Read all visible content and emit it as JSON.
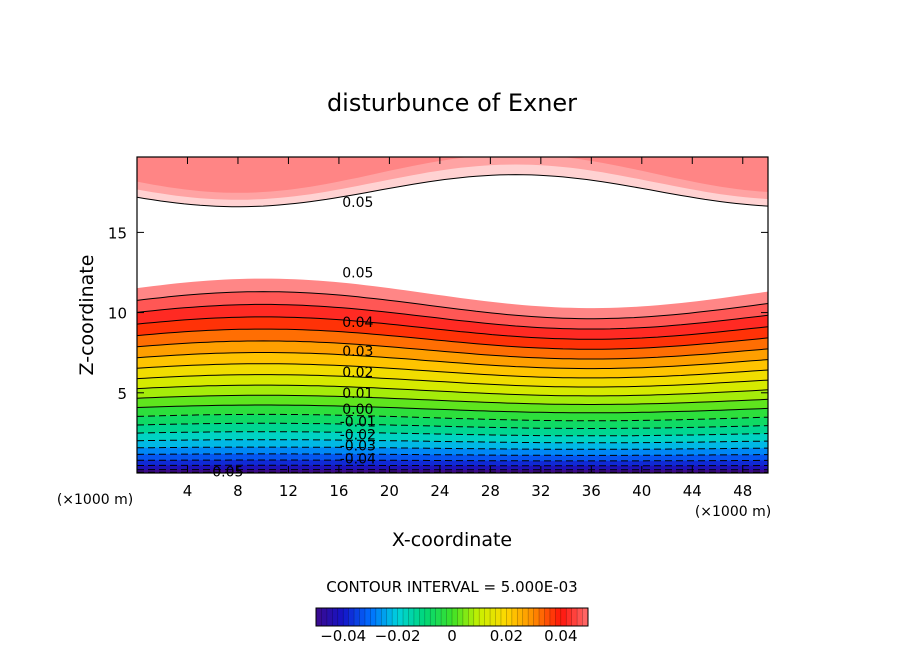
{
  "chart_data": {
    "type": "contour",
    "title": "disturbunce of Exner",
    "xlabel": "X-coordinate",
    "ylabel": "Z-coordinate",
    "x_unit": "(×1000 m)",
    "xlim": [
      0,
      50
    ],
    "ylim": [
      0,
      19.7
    ],
    "x_ticks": [
      4,
      8,
      12,
      16,
      20,
      24,
      28,
      32,
      36,
      40,
      44,
      48
    ],
    "y_ticks": [
      5,
      10,
      15
    ],
    "contour_interval_text": "CONTOUR INTERVAL = 5.000E-03",
    "contour_levels": [
      -0.05,
      -0.045,
      -0.04,
      -0.035,
      -0.03,
      -0.025,
      -0.02,
      -0.015,
      -0.01,
      -0.005,
      0.0,
      0.005,
      0.01,
      0.015,
      0.02,
      0.025,
      0.03,
      0.035,
      0.04,
      0.045,
      0.05
    ],
    "upper_band_levels": [
      0.05,
      0.055,
      0.06
    ],
    "contour_labels": [
      {
        "text": "0.05",
        "x": 17.5,
        "z": 16.9
      },
      {
        "text": "0.05",
        "x": 17.5,
        "z": 12.5
      },
      {
        "text": "0.04",
        "x": 17.5,
        "z": 9.4
      },
      {
        "text": "0.03",
        "x": 17.5,
        "z": 7.6
      },
      {
        "text": "0.02",
        "x": 17.5,
        "z": 6.3
      },
      {
        "text": "0.01",
        "x": 17.5,
        "z": 5.0
      },
      {
        "text": "0.00",
        "x": 17.5,
        "z": 4.0
      },
      {
        "text": "-0.01",
        "x": 17.5,
        "z": 3.2
      },
      {
        "text": "-0.02",
        "x": 17.5,
        "z": 2.4
      },
      {
        "text": "-0.03",
        "x": 17.5,
        "z": 1.7
      },
      {
        "text": "-0.04",
        "x": 17.5,
        "z": 0.9
      },
      {
        "text": "-0.05",
        "x": 7.0,
        "z": 0.1
      }
    ],
    "colorbar": {
      "range": [
        -0.05,
        0.05
      ],
      "tick_values": [
        -0.04,
        -0.02,
        0,
        0.02,
        0.04
      ],
      "tick_labels": [
        "−0.04",
        "−0.02",
        "0",
        "0.02",
        "0.04"
      ]
    },
    "colors": {
      "low": "#3a0a8c",
      "mid": "#33dd33",
      "high": "#ff1010",
      "pale_high": "#ffc8c8"
    },
    "grid": false,
    "legend": "bottom colorbar"
  }
}
